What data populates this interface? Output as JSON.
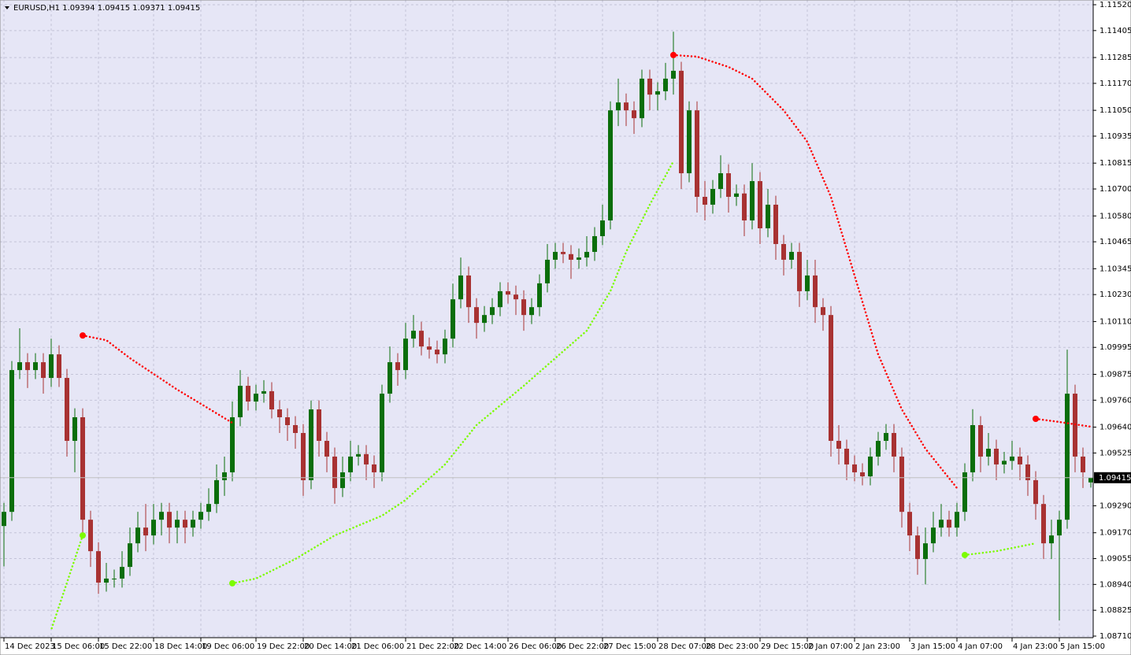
{
  "chart_data": {
    "type": "candlestick",
    "symbol": "EURUSD,H1",
    "up_color": "#0b6e0b",
    "down_color": "#a83232",
    "background": "#e6e6f6",
    "grid": true,
    "ylim": [
      1.0871,
      1.1152
    ],
    "yticks": [
      {
        "value": 1.1152,
        "label": "1.11520"
      },
      {
        "value": 1.11405,
        "label": "1.11405"
      },
      {
        "value": 1.11285,
        "label": "1.11285"
      },
      {
        "value": 1.1117,
        "label": "1.11170"
      },
      {
        "value": 1.1105,
        "label": "1.11050"
      },
      {
        "value": 1.10935,
        "label": "1.10935"
      },
      {
        "value": 1.10815,
        "label": "1.10815"
      },
      {
        "value": 1.107,
        "label": "1.10700"
      },
      {
        "value": 1.1058,
        "label": "1.10580"
      },
      {
        "value": 1.10465,
        "label": "1.10465"
      },
      {
        "value": 1.10345,
        "label": "1.10345"
      },
      {
        "value": 1.1023,
        "label": "1.10230"
      },
      {
        "value": 1.1011,
        "label": "1.10110"
      },
      {
        "value": 1.09995,
        "label": "1.09995"
      },
      {
        "value": 1.09875,
        "label": "1.09875"
      },
      {
        "value": 1.0976,
        "label": "1.09760"
      },
      {
        "value": 1.0964,
        "label": "1.09640"
      },
      {
        "value": 1.09525,
        "label": "1.09525"
      },
      {
        "value": 1.0929,
        "label": "1.09290"
      },
      {
        "value": 1.0917,
        "label": "1.09170"
      },
      {
        "value": 1.09055,
        "label": "1.09055"
      },
      {
        "value": 1.0894,
        "label": "1.08940"
      },
      {
        "value": 1.08825,
        "label": "1.08825"
      },
      {
        "value": 1.0871,
        "label": "1.08710"
      }
    ],
    "xticks": [
      {
        "value": 0,
        "label": "14 Dec 2023"
      },
      {
        "value": 6,
        "label": "15 Dec 06:00"
      },
      {
        "value": 12,
        "label": "15 Dec 22:00"
      },
      {
        "value": 19,
        "label": "18 Dec 14:00"
      },
      {
        "value": 25,
        "label": "19 Dec 06:00"
      },
      {
        "value": 32,
        "label": "19 Dec 22:00"
      },
      {
        "value": 38,
        "label": "20 Dec 14:00"
      },
      {
        "value": 44,
        "label": "21 Dec 06:00"
      },
      {
        "value": 51,
        "label": "21 Dec 22:00"
      },
      {
        "value": 57,
        "label": "22 Dec 14:00"
      },
      {
        "value": 64,
        "label": "26 Dec 06:00"
      },
      {
        "value": 70,
        "label": "26 Dec 22:00"
      },
      {
        "value": 76,
        "label": "27 Dec 15:00"
      },
      {
        "value": 83,
        "label": "28 Dec 07:00"
      },
      {
        "value": 89,
        "label": "28 Dec 23:00"
      },
      {
        "value": 96,
        "label": "29 Dec 15:00"
      },
      {
        "value": 102,
        "label": "2 Jan 07:00"
      },
      {
        "value": 108,
        "label": "2 Jan 23:00"
      },
      {
        "value": 115,
        "label": "3 Jan 15:00"
      },
      {
        "value": 121,
        "label": "4 Jan 07:00"
      },
      {
        "value": 128,
        "label": "4 Jan 23:00"
      },
      {
        "value": 134,
        "label": "5 Jan 15:00"
      }
    ],
    "candles": [
      [
        1.092,
        1.09303,
        1.0902,
        1.09263
      ],
      [
        1.09263,
        1.09934,
        1.09223,
        1.09894
      ],
      [
        1.09894,
        1.1008,
        1.09854,
        1.09929
      ],
      [
        1.09929,
        1.09969,
        1.09814,
        1.09894
      ],
      [
        1.09894,
        1.09969,
        1.09854,
        1.09929
      ],
      [
        1.09929,
        1.09969,
        1.09789,
        1.09859
      ],
      [
        1.09859,
        1.10034,
        1.09819,
        1.09964
      ],
      [
        1.09964,
        1.10004,
        1.09819,
        1.09859
      ],
      [
        1.09859,
        1.09899,
        1.09509,
        1.09579
      ],
      [
        1.09579,
        1.09724,
        1.09439,
        1.09684
      ],
      [
        1.09684,
        1.09724,
        1.09158,
        1.09228
      ],
      [
        1.09228,
        1.09268,
        1.09018,
        1.09088
      ],
      [
        1.09088,
        1.09128,
        1.08898,
        1.08948
      ],
      [
        1.08948,
        1.09036,
        1.08908,
        1.08966
      ],
      [
        1.08966,
        1.09006,
        1.08926,
        1.08966
      ],
      [
        1.08966,
        1.09088,
        1.08926,
        1.09018
      ],
      [
        1.09018,
        1.09193,
        1.08978,
        1.09123
      ],
      [
        1.09123,
        1.09263,
        1.09083,
        1.09193
      ],
      [
        1.09193,
        1.09298,
        1.09088,
        1.09158
      ],
      [
        1.09158,
        1.09298,
        1.09118,
        1.09228
      ],
      [
        1.09228,
        1.09303,
        1.09158,
        1.09263
      ],
      [
        1.09263,
        1.09303,
        1.09123,
        1.09193
      ],
      [
        1.09193,
        1.09268,
        1.09123,
        1.09228
      ],
      [
        1.09228,
        1.09268,
        1.09123,
        1.09193
      ],
      [
        1.09193,
        1.09268,
        1.09153,
        1.09228
      ],
      [
        1.09228,
        1.09303,
        1.09188,
        1.09263
      ],
      [
        1.09263,
        1.09368,
        1.09223,
        1.09298
      ],
      [
        1.09298,
        1.09474,
        1.09258,
        1.09404
      ],
      [
        1.09404,
        1.09509,
        1.09334,
        1.09439
      ],
      [
        1.09439,
        1.09754,
        1.09399,
        1.09684
      ],
      [
        1.09684,
        1.09894,
        1.09644,
        1.09824
      ],
      [
        1.09824,
        1.09864,
        1.09714,
        1.09754
      ],
      [
        1.09754,
        1.09829,
        1.09714,
        1.09789
      ],
      [
        1.09789,
        1.09849,
        1.09749,
        1.098
      ],
      [
        1.098,
        1.0984,
        1.09679,
        1.09719
      ],
      [
        1.09719,
        1.09759,
        1.09614,
        1.09684
      ],
      [
        1.09684,
        1.09724,
        1.09579,
        1.09649
      ],
      [
        1.09649,
        1.09689,
        1.09544,
        1.09614
      ],
      [
        1.09614,
        1.09654,
        1.09334,
        1.09404
      ],
      [
        1.09404,
        1.09759,
        1.09364,
        1.09719
      ],
      [
        1.09719,
        1.09759,
        1.09509,
        1.09579
      ],
      [
        1.09579,
        1.09619,
        1.09439,
        1.09509
      ],
      [
        1.09509,
        1.09549,
        1.09299,
        1.09369
      ],
      [
        1.09369,
        1.09509,
        1.09329,
        1.09439
      ],
      [
        1.09439,
        1.09579,
        1.09399,
        1.09509
      ],
      [
        1.09509,
        1.0956,
        1.09469,
        1.0952
      ],
      [
        1.0952,
        1.0956,
        1.09404,
        1.09474
      ],
      [
        1.09474,
        1.09514,
        1.09369,
        1.09439
      ],
      [
        1.09439,
        1.09829,
        1.09399,
        1.09789
      ],
      [
        1.09789,
        1.09999,
        1.09749,
        1.09929
      ],
      [
        1.09929,
        1.09969,
        1.09824,
        1.09894
      ],
      [
        1.09894,
        1.10104,
        1.09854,
        1.10034
      ],
      [
        1.10034,
        1.10139,
        1.09994,
        1.10069
      ],
      [
        1.10069,
        1.10109,
        1.09959,
        1.09999
      ],
      [
        1.09999,
        1.10039,
        1.09945,
        1.09985
      ],
      [
        1.09985,
        1.10025,
        1.09924,
        1.09964
      ],
      [
        1.09964,
        1.10074,
        1.09924,
        1.10034
      ],
      [
        1.10034,
        1.10279,
        1.09994,
        1.10209
      ],
      [
        1.10209,
        1.10395,
        1.10169,
        1.10315
      ],
      [
        1.10315,
        1.10355,
        1.10104,
        1.10174
      ],
      [
        1.10174,
        1.10214,
        1.10034,
        1.10104
      ],
      [
        1.10104,
        1.10179,
        1.10064,
        1.10139
      ],
      [
        1.10139,
        1.10214,
        1.10099,
        1.10174
      ],
      [
        1.10174,
        1.10285,
        1.10134,
        1.10245
      ],
      [
        1.10245,
        1.10285,
        1.1019,
        1.1023
      ],
      [
        1.1023,
        1.1027,
        1.10139,
        1.10209
      ],
      [
        1.10209,
        1.10249,
        1.10069,
        1.10139
      ],
      [
        1.10139,
        1.10214,
        1.10099,
        1.10174
      ],
      [
        1.10174,
        1.1032,
        1.10134,
        1.1028
      ],
      [
        1.1028,
        1.10455,
        1.1024,
        1.10385
      ],
      [
        1.10385,
        1.1046,
        1.10345,
        1.1042
      ],
      [
        1.1042,
        1.1046,
        1.1037,
        1.1041
      ],
      [
        1.1041,
        1.1045,
        1.103,
        1.10385
      ],
      [
        1.10385,
        1.10435,
        1.10345,
        1.10395
      ],
      [
        1.10395,
        1.1049,
        1.10355,
        1.1042
      ],
      [
        1.1042,
        1.1053,
        1.1038,
        1.1049
      ],
      [
        1.1049,
        1.1063,
        1.1045,
        1.1056
      ],
      [
        1.1056,
        1.1109,
        1.1052,
        1.1105
      ],
      [
        1.1105,
        1.11191,
        1.1098,
        1.11085
      ],
      [
        1.11085,
        1.11125,
        1.1098,
        1.1105
      ],
      [
        1.1105,
        1.1109,
        1.10945,
        1.11015
      ],
      [
        1.11015,
        1.11231,
        1.10975,
        1.11191
      ],
      [
        1.11191,
        1.11231,
        1.1105,
        1.1112
      ],
      [
        1.1112,
        1.11175,
        1.1105,
        1.11135
      ],
      [
        1.11135,
        1.11261,
        1.11095,
        1.11191
      ],
      [
        1.11191,
        1.114,
        1.1112,
        1.11226
      ],
      [
        1.11226,
        1.11266,
        1.107,
        1.1077
      ],
      [
        1.1077,
        1.1109,
        1.1073,
        1.1105
      ],
      [
        1.1105,
        1.1109,
        1.10595,
        1.10665
      ],
      [
        1.10665,
        1.10735,
        1.1056,
        1.1063
      ],
      [
        1.1063,
        1.1074,
        1.1059,
        1.107
      ],
      [
        1.107,
        1.1085,
        1.1066,
        1.1077
      ],
      [
        1.1077,
        1.1081,
        1.10595,
        1.10665
      ],
      [
        1.10665,
        1.1072,
        1.10625,
        1.1068
      ],
      [
        1.1068,
        1.1072,
        1.1049,
        1.1056
      ],
      [
        1.1056,
        1.10815,
        1.1052,
        1.10735
      ],
      [
        1.10735,
        1.10775,
        1.10455,
        1.10525
      ],
      [
        1.10525,
        1.107,
        1.10485,
        1.1063
      ],
      [
        1.1063,
        1.1067,
        1.10385,
        1.10455
      ],
      [
        1.10455,
        1.10495,
        1.10315,
        1.10385
      ],
      [
        1.10385,
        1.1046,
        1.10345,
        1.1042
      ],
      [
        1.1042,
        1.1046,
        1.10175,
        1.10245
      ],
      [
        1.10245,
        1.10385,
        1.10205,
        1.10315
      ],
      [
        1.10315,
        1.10385,
        1.10104,
        1.10174
      ],
      [
        1.10174,
        1.10214,
        1.10069,
        1.10139
      ],
      [
        1.10139,
        1.10179,
        1.09509,
        1.09579
      ],
      [
        1.09579,
        1.09649,
        1.09474,
        1.09544
      ],
      [
        1.09544,
        1.09584,
        1.09404,
        1.09474
      ],
      [
        1.09474,
        1.09514,
        1.09399,
        1.09439
      ],
      [
        1.09439,
        1.09479,
        1.09381,
        1.09421
      ],
      [
        1.09421,
        1.09549,
        1.09381,
        1.09509
      ],
      [
        1.09509,
        1.09619,
        1.09469,
        1.09579
      ],
      [
        1.09579,
        1.09654,
        1.09539,
        1.09614
      ],
      [
        1.09614,
        1.09654,
        1.09439,
        1.09509
      ],
      [
        1.09509,
        1.09549,
        1.09193,
        1.09263
      ],
      [
        1.09263,
        1.09303,
        1.09088,
        1.09158
      ],
      [
        1.09158,
        1.09198,
        1.08983,
        1.09053
      ],
      [
        1.09053,
        1.09193,
        1.0894,
        1.09123
      ],
      [
        1.09123,
        1.09263,
        1.09083,
        1.09193
      ],
      [
        1.09193,
        1.09298,
        1.09153,
        1.09228
      ],
      [
        1.09228,
        1.09268,
        1.09153,
        1.09193
      ],
      [
        1.09193,
        1.09303,
        1.09153,
        1.09263
      ],
      [
        1.09263,
        1.09479,
        1.09223,
        1.09439
      ],
      [
        1.09439,
        1.0972,
        1.09399,
        1.09649
      ],
      [
        1.09649,
        1.09689,
        1.09439,
        1.09509
      ],
      [
        1.09509,
        1.09614,
        1.09469,
        1.09544
      ],
      [
        1.09544,
        1.09584,
        1.09404,
        1.09474
      ],
      [
        1.09474,
        1.0953,
        1.09434,
        1.0949
      ],
      [
        1.0949,
        1.09579,
        1.0945,
        1.09509
      ],
      [
        1.09509,
        1.09549,
        1.09404,
        1.09474
      ],
      [
        1.09474,
        1.09514,
        1.09334,
        1.09404
      ],
      [
        1.09404,
        1.09444,
        1.09228,
        1.09298
      ],
      [
        1.09298,
        1.09338,
        1.09053,
        1.09123
      ],
      [
        1.09123,
        1.09228,
        1.09053,
        1.09158
      ],
      [
        1.09158,
        1.09268,
        1.0878,
        1.09228
      ],
      [
        1.09228,
        1.09985,
        1.09188,
        1.09789
      ],
      [
        1.09789,
        1.09829,
        1.09439,
        1.09509
      ],
      [
        1.09509,
        1.09549,
        1.09369,
        1.09439
      ],
      [
        1.09394,
        1.09415,
        1.09371,
        1.09415
      ]
    ],
    "indicators": [
      {
        "color": "#ff0000",
        "x": [
          10,
          13,
          16,
          22,
          29
        ],
        "values": [
          1.10048,
          1.10027,
          1.09947,
          1.09807,
          1.09659
        ]
      },
      {
        "color": "#ff0000",
        "x": [
          85,
          88,
          92,
          95,
          99,
          102,
          105,
          108,
          111,
          114,
          117,
          121
        ],
        "values": [
          1.11296,
          1.11289,
          1.11243,
          1.11191,
          1.1105,
          1.1091,
          1.10665,
          1.10315,
          1.09964,
          1.09719,
          1.09544,
          1.09369
        ]
      },
      {
        "color": "#ff0000",
        "x": [
          131,
          134,
          138
        ],
        "values": [
          1.09677,
          1.09663,
          1.09642
        ]
      },
      {
        "color": "#7cfc00",
        "x": [
          10,
          8,
          6
        ],
        "values": [
          1.09158,
          1.08948,
          1.08738
        ]
      },
      {
        "color": "#7cfc00",
        "x": [
          29,
          32,
          37,
          42,
          48,
          51,
          56,
          60,
          66,
          70,
          74,
          77,
          79,
          82,
          85
        ],
        "values": [
          1.08945,
          1.08966,
          1.09053,
          1.09158,
          1.09246,
          1.09316,
          1.09474,
          1.09649,
          1.09824,
          1.09947,
          1.10069,
          1.10245,
          1.1042,
          1.1063,
          1.10823
        ]
      },
      {
        "color": "#7cfc00",
        "x": [
          122,
          126,
          131
        ],
        "values": [
          1.09071,
          1.09088,
          1.09123
        ]
      }
    ]
  }
}
